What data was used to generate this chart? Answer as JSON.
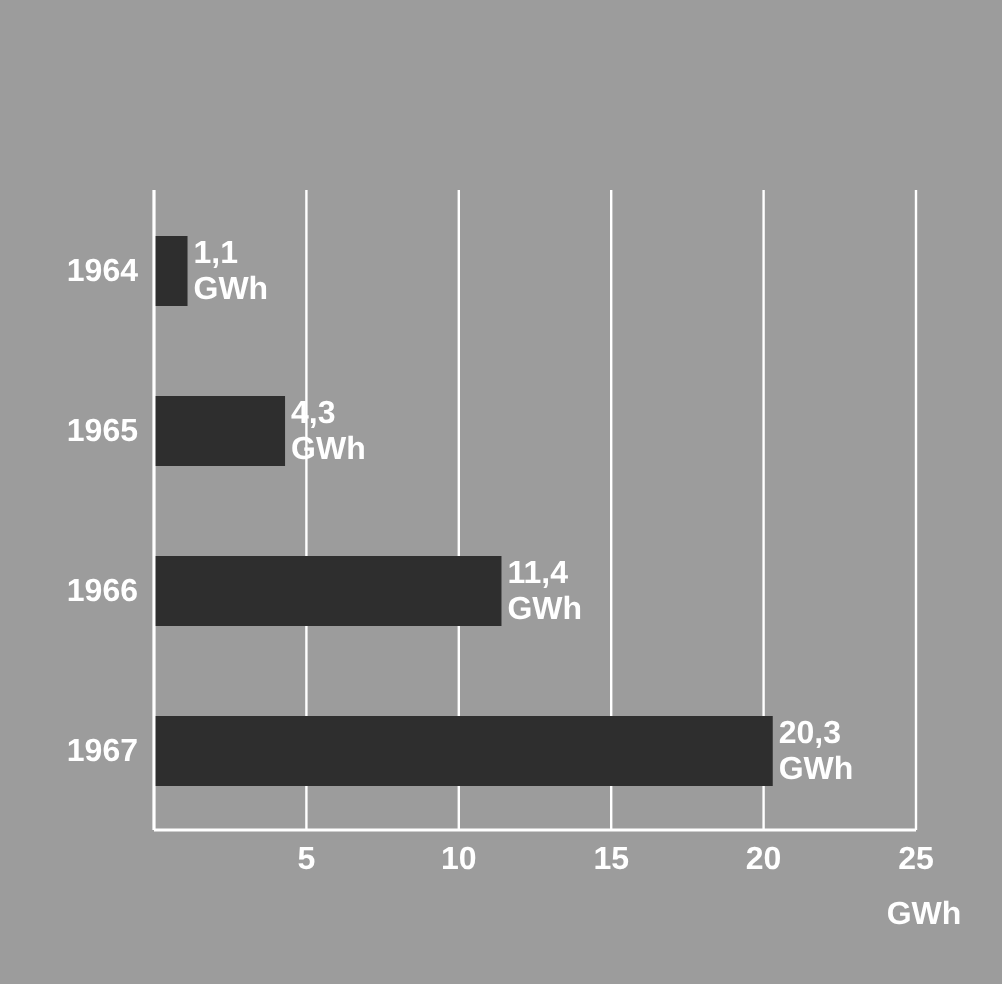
{
  "chart_data": {
    "type": "bar",
    "orientation": "horizontal",
    "categories": [
      "1964",
      "1965",
      "1966",
      "1967"
    ],
    "values": [
      1.1,
      4.3,
      11.4,
      20.3
    ],
    "color": "#2e2e2e",
    "value_labels": [
      "1,1 GWh",
      "4,3 GWh",
      "11,4 GWh",
      "20,3 GWh"
    ],
    "xlim": [
      0,
      25
    ],
    "xticks": [
      5,
      10,
      15,
      20,
      25
    ],
    "xlabel": "GWh",
    "grid": "x"
  }
}
